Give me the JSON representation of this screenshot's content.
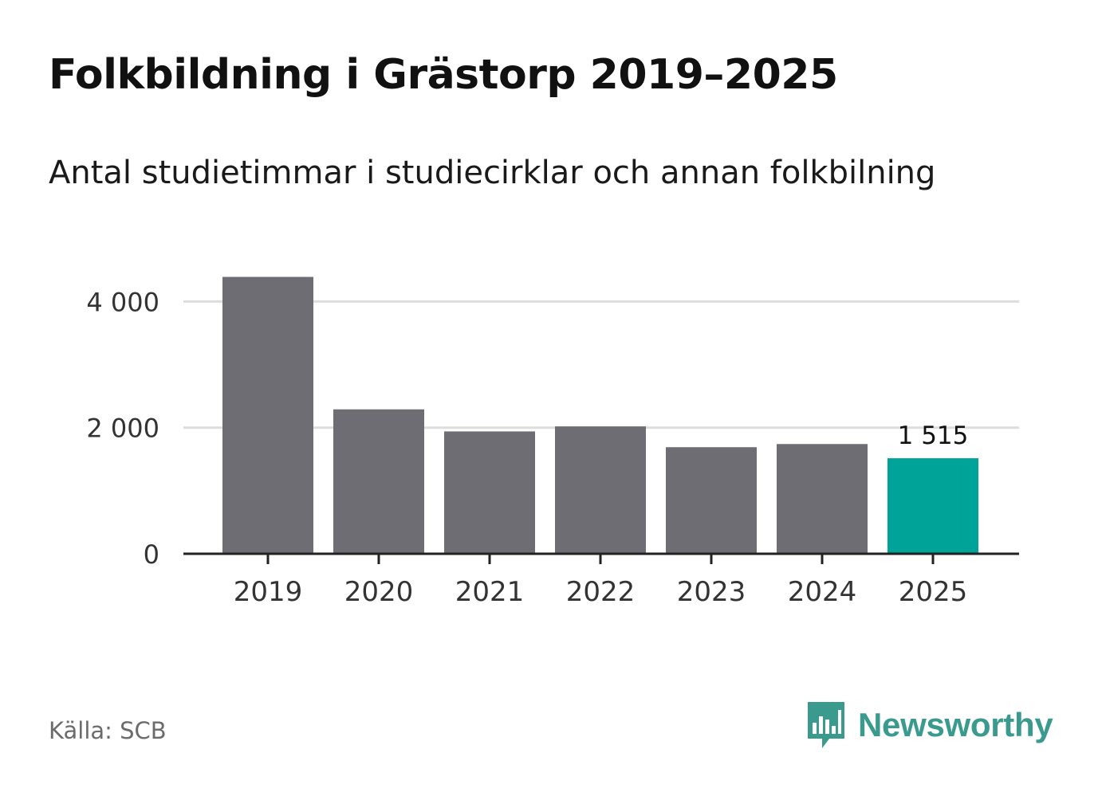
{
  "header": {
    "title": "Folkbildning i Grästorp 2019–2025",
    "subtitle": "Antal studietimmar i studiecirklar och annan folkbilning"
  },
  "footer": {
    "source": "Källa: SCB",
    "brand_name": "Newsworthy",
    "brand_icon": "newsworthy-logo-icon"
  },
  "colors": {
    "bar_default": "#6e6d74",
    "bar_highlight": "#00a398",
    "gridline": "#dddddd",
    "axis": "#222222",
    "tick_text": "#333333",
    "brand": "#3a9a8e"
  },
  "chart_data": {
    "type": "bar",
    "title": "Folkbildning i Grästorp 2019–2025",
    "subtitle": "Antal studietimmar i studiecirklar och annan folkbilning",
    "xlabel": "",
    "ylabel": "",
    "categories": [
      "2019",
      "2020",
      "2021",
      "2022",
      "2023",
      "2024",
      "2025"
    ],
    "values": [
      4390,
      2290,
      1940,
      2020,
      1690,
      1740,
      1515
    ],
    "highlight_index": 6,
    "data_labels": [
      {
        "index": 6,
        "text": "1 515"
      }
    ],
    "ylim": [
      0,
      4000
    ],
    "yticks": [
      {
        "value": 0,
        "label": "0"
      },
      {
        "value": 2000,
        "label": "2 000"
      },
      {
        "value": 4000,
        "label": "4 000"
      }
    ],
    "grid": true,
    "legend": "none"
  }
}
